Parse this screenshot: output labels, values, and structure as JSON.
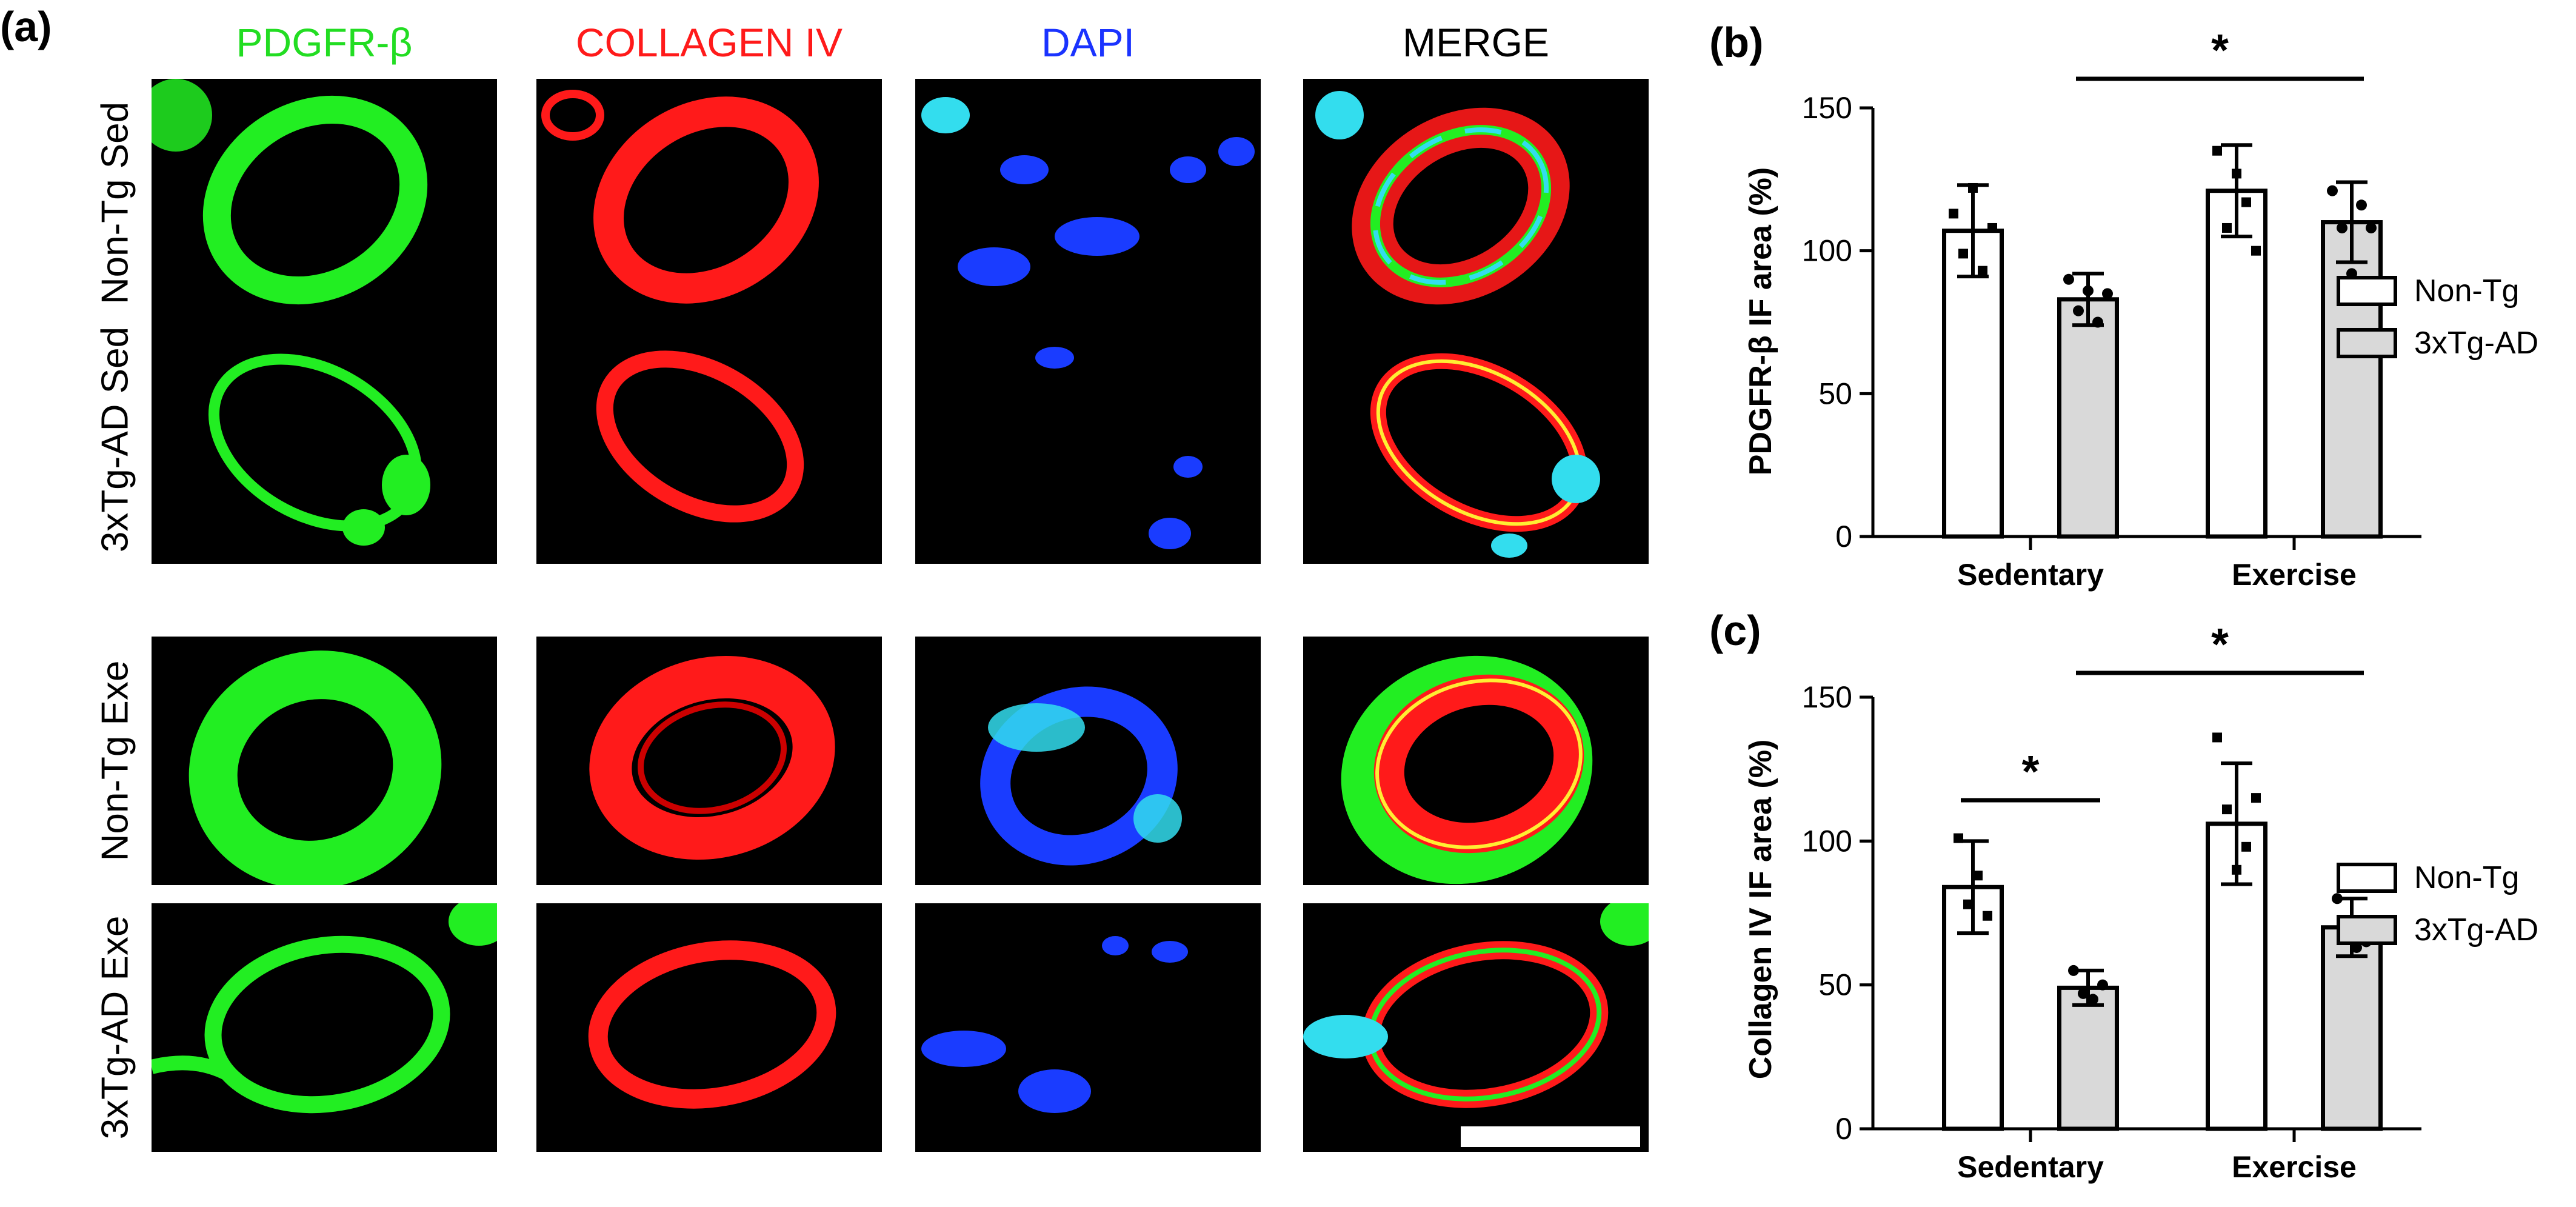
{
  "panels": {
    "a": "(a)",
    "b": "(b)",
    "c": "(c)"
  },
  "columns": [
    {
      "label": "PDGFR-β",
      "color": "#22dd22"
    },
    {
      "label": "COLLAGEN IV",
      "color": "#ff1a1a"
    },
    {
      "label": "DAPI",
      "color": "#1a33ff"
    },
    {
      "label": "MERGE",
      "color": "#000000"
    }
  ],
  "rows": [
    "Non-Tg Sed",
    "3xTg-AD Sed",
    "Non-Tg Exe",
    "3xTg-AD Exe"
  ],
  "colors": {
    "green": "#22ee22",
    "red": "#ff1a1a",
    "blue": "#1a3cff",
    "cyan": "#33ddee",
    "bar_nontg": "#ffffff",
    "bar_3xtg": "#d9d9d9"
  },
  "legend": [
    {
      "label": "Non-Tg",
      "fill": "#ffffff"
    },
    {
      "label": "3xTg-AD",
      "fill": "#d9d9d9"
    }
  ],
  "chart_data": [
    {
      "panel": "b",
      "type": "bar",
      "ylabel": "PDGFR-β IF  area (%)",
      "ylim": [
        0,
        150
      ],
      "yticks": [
        0,
        50,
        100,
        150
      ],
      "categories": [
        "Sedentary",
        "Exercise"
      ],
      "series": [
        {
          "name": "Non-Tg",
          "values": [
            107,
            121
          ],
          "error": [
            16,
            16
          ],
          "points": [
            [
              113,
              99,
              122,
              93,
              108
            ],
            [
              135,
              108,
              127,
              117,
              100
            ]
          ]
        },
        {
          "name": "3xTg-AD",
          "values": [
            83,
            110
          ],
          "error": [
            9,
            14
          ],
          "points": [
            [
              90,
              79,
              86,
              75,
              85
            ],
            [
              121,
              108,
              92,
              116,
              108
            ]
          ]
        }
      ],
      "significance": [
        {
          "label": "*",
          "from": "Sedentary 3xTg-AD",
          "to": "Exercise 3xTg-AD"
        }
      ]
    },
    {
      "panel": "c",
      "type": "bar",
      "ylabel": "Collagen IV IF  area (%)",
      "ylim": [
        0,
        150
      ],
      "yticks": [
        0,
        50,
        100,
        150
      ],
      "categories": [
        "Sedentary",
        "Exercise"
      ],
      "series": [
        {
          "name": "Non-Tg",
          "values": [
            84,
            106
          ],
          "error": [
            16,
            21
          ],
          "points": [
            [
              101,
              78,
              88,
              74
            ],
            [
              136,
              111,
              90,
              98,
              115
            ]
          ]
        },
        {
          "name": "3xTg-AD",
          "values": [
            49,
            70
          ],
          "error": [
            6,
            10
          ],
          "points": [
            [
              55,
              47,
              45,
              50
            ],
            [
              80,
              67,
              63,
              65
            ]
          ]
        }
      ],
      "significance": [
        {
          "label": "*",
          "from": "Sedentary Non-Tg",
          "to": "Sedentary 3xTg-AD"
        },
        {
          "label": "*",
          "from": "Sedentary 3xTg-AD",
          "to": "Exercise 3xTg-AD"
        }
      ]
    }
  ]
}
